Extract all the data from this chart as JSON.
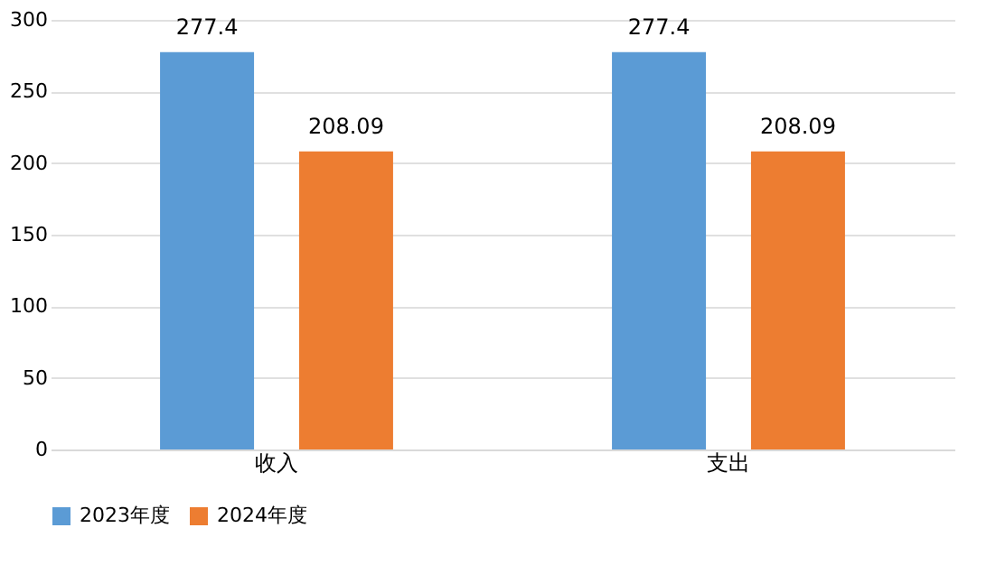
{
  "chart_data": {
    "type": "bar",
    "categories": [
      "收入",
      "支出"
    ],
    "series": [
      {
        "name": "2023年度",
        "color": "#5b9bd5",
        "values": [
          277.4,
          277.4
        ]
      },
      {
        "name": "2024年度",
        "color": "#ed7d31",
        "values": [
          208.09,
          208.09
        ]
      }
    ],
    "ylim": [
      0,
      300
    ],
    "yticks": [
      0,
      50,
      100,
      150,
      200,
      250,
      300
    ],
    "grid": "y",
    "legend": "bottom",
    "data_labels": true
  }
}
